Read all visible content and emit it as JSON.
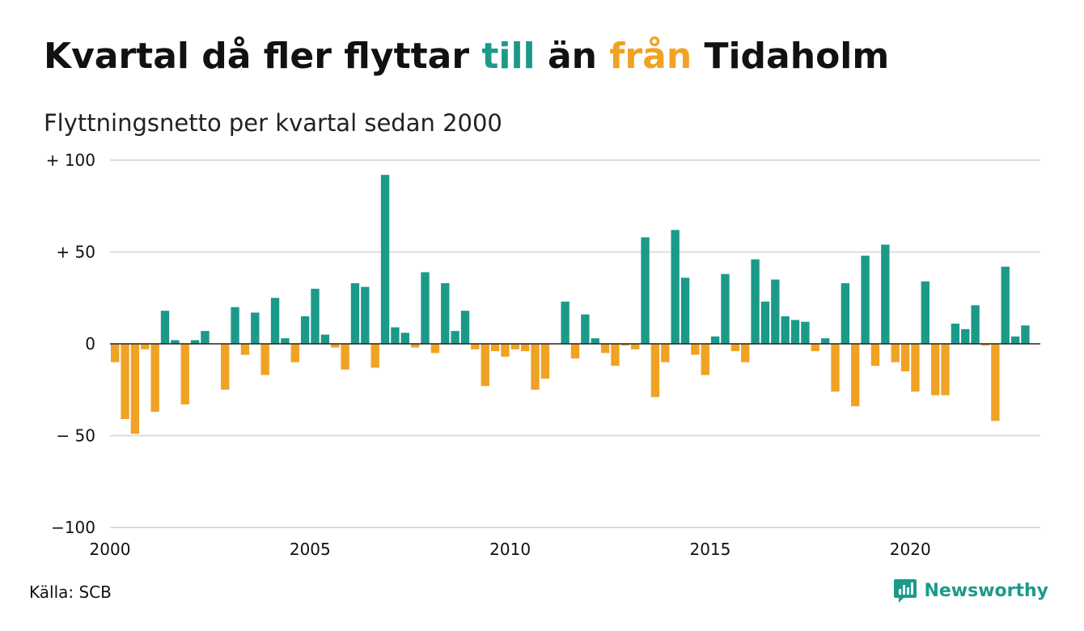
{
  "header": {
    "title_part1": "Kvartal då fler flyttar ",
    "title_till": "till",
    "title_part2": " än ",
    "title_fran": "från",
    "title_part3": " Tidaholm",
    "subtitle": "Flyttningsnetto per kvartal sedan 2000"
  },
  "footer": {
    "source": "Källa: SCB",
    "brand": "Newsworthy"
  },
  "colors": {
    "positive": "#1b9a8a",
    "negative": "#f0a224",
    "grid": "#dcdcdc",
    "zero_line": "#222222"
  },
  "icons": {
    "brand_logo": "bar-chart-speech-bubble-icon"
  },
  "chart_data": {
    "type": "bar",
    "title": "Kvartal då fler flyttar till än från Tidaholm",
    "subtitle": "Flyttningsnetto per kvartal sedan 2000",
    "xlabel": "",
    "ylabel": "",
    "ylim": [
      -100,
      100
    ],
    "xlim": [
      2000,
      2023.25
    ],
    "y_ticks": [
      100,
      50,
      0,
      -50,
      -100
    ],
    "y_tick_labels": [
      "+ 100",
      "+  50",
      "0",
      "− 50",
      "−100"
    ],
    "x_ticks": [
      2000,
      2005,
      2010,
      2015,
      2020
    ],
    "x_tick_labels": [
      "2000",
      "2005",
      "2010",
      "2015",
      "2020"
    ],
    "grid": true,
    "legend": "none",
    "first_quarter": "2000 Q1",
    "values": [
      -10,
      -41,
      -49,
      -3,
      -37,
      18,
      2,
      -33,
      2,
      7,
      0,
      -25,
      20,
      -6,
      17,
      -17,
      25,
      3,
      -10,
      15,
      30,
      5,
      -2,
      -14,
      33,
      31,
      -13,
      92,
      9,
      6,
      -2,
      39,
      -5,
      33,
      7,
      18,
      -3,
      -23,
      -4,
      -7,
      -3,
      -4,
      -25,
      -19,
      0,
      23,
      -8,
      16,
      3,
      -5,
      -12,
      -1,
      -3,
      58,
      -29,
      -10,
      62,
      36,
      -6,
      -17,
      4,
      38,
      -4,
      -10,
      46,
      23,
      35,
      15,
      13,
      12,
      -4,
      3,
      -26,
      33,
      -34,
      48,
      -12,
      54,
      -10,
      -15,
      -26,
      34,
      -28,
      -28,
      11,
      8,
      21,
      -1,
      -42,
      42,
      4,
      10
    ]
  }
}
